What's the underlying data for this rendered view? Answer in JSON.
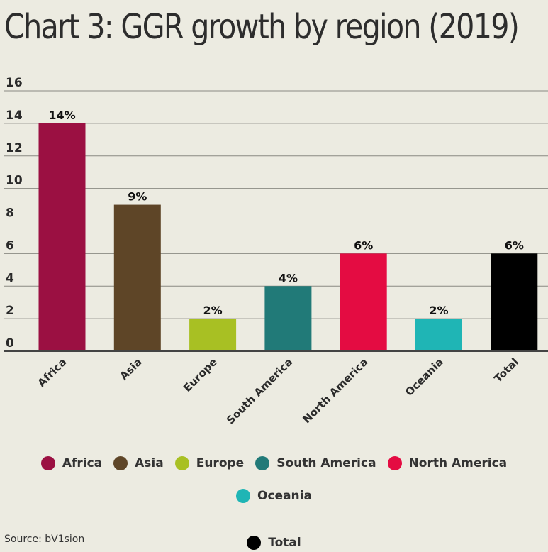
{
  "title": "Chart 3: GGR growth by region (2019)",
  "source": "Source: bV1sion",
  "chart_data": {
    "type": "bar",
    "title": "Chart 3: GGR growth by region (2019)",
    "categories": [
      "Africa",
      "Asia",
      "Europe",
      "South America",
      "North America",
      "Oceania",
      "Total"
    ],
    "values": [
      14,
      9,
      2,
      4,
      6,
      2,
      6
    ],
    "data_labels": [
      "14%",
      "9%",
      "2%",
      "4%",
      "6%",
      "2%",
      "6%"
    ],
    "colors": [
      "#9b1042",
      "#5e4527",
      "#a8c023",
      "#217a78",
      "#e40c42",
      "#1fb5b5",
      "#000000"
    ],
    "ylim": [
      0,
      16
    ],
    "yticks": [
      0,
      2,
      4,
      6,
      8,
      10,
      12,
      14,
      16
    ],
    "xlabel": "",
    "ylabel": "",
    "grid": true,
    "legend_position": "bottom"
  },
  "legend": [
    {
      "label": "Africa",
      "color": "#9b1042"
    },
    {
      "label": "Asia",
      "color": "#5e4527"
    },
    {
      "label": "Europe",
      "color": "#a8c023"
    },
    {
      "label": "South America",
      "color": "#217a78"
    },
    {
      "label": "North America",
      "color": "#e40c42"
    },
    {
      "label": "Oceania",
      "color": "#1fb5b5"
    },
    {
      "label": "Total",
      "color": "#000000"
    }
  ]
}
